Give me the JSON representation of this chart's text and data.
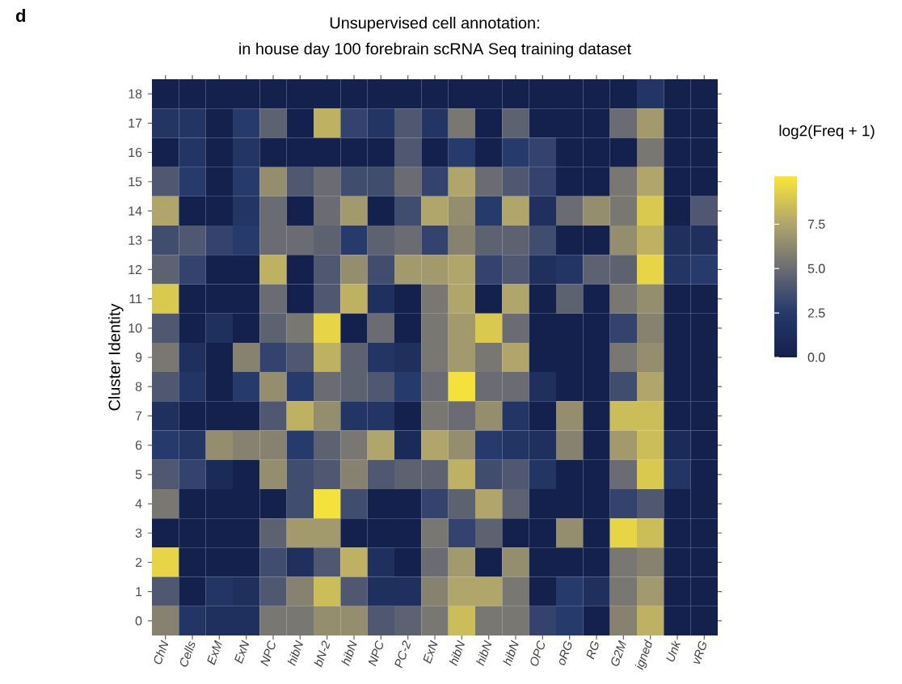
{
  "chart_data": {
    "type": "heatmap",
    "title": "Unsupervised cell annotation:",
    "subtitle": "in house day 100 forebrain scRNA Seq training dataset",
    "ylabel": "Cluster Identity",
    "clabel": "log2(Freq + 1)",
    "annotations": [
      "d"
    ],
    "categories": [
      "ChN",
      "Cells",
      "ExM",
      "ExN",
      "NPC",
      "hibN",
      "bN-2",
      "hibN",
      "NPC",
      "PC-2",
      "ExN",
      "hibN",
      "hibN",
      "hibN",
      "OPC",
      "oRG",
      "RG",
      "G2M",
      "igned",
      "Unk",
      "vRG"
    ],
    "y_categories": [
      "18",
      "17",
      "16",
      "15",
      "14",
      "13",
      "12",
      "11",
      "10",
      "9",
      "8",
      "7",
      "6",
      "5",
      "4",
      "3",
      "2",
      "1",
      "0"
    ],
    "cells": [
      [
        0,
        0,
        0,
        0,
        0,
        0,
        0,
        0,
        0,
        0,
        0,
        0,
        0,
        0,
        0,
        0,
        0,
        0,
        2,
        0,
        0
      ],
      [
        2,
        2,
        0,
        2.5,
        4.5,
        0,
        8,
        3,
        2,
        4,
        2,
        5.5,
        0,
        4.5,
        0,
        0,
        0,
        5,
        7,
        0,
        0
      ],
      [
        0,
        2,
        0,
        2,
        0,
        0,
        0,
        0,
        0,
        4,
        0,
        2.5,
        0,
        2.5,
        3,
        0,
        0,
        0,
        5.5,
        0,
        0
      ],
      [
        4,
        2.5,
        0,
        2.5,
        6.5,
        4,
        5,
        3.5,
        3.5,
        5,
        3,
        7.5,
        5,
        4,
        3,
        0,
        0,
        5.5,
        7.5,
        0,
        0
      ],
      [
        7.5,
        0,
        0,
        2,
        5,
        0,
        5,
        7,
        0,
        3.5,
        7.5,
        6.5,
        2.5,
        7.5,
        1.5,
        5,
        6.5,
        5.5,
        9,
        0,
        4
      ],
      [
        3.5,
        4,
        3,
        2.5,
        5,
        5,
        4.5,
        2.5,
        4.5,
        5,
        3,
        6,
        4.5,
        4.5,
        3.5,
        0,
        0,
        6.5,
        8,
        1.5,
        1.5
      ],
      [
        4.5,
        3,
        0,
        0,
        8,
        0,
        4,
        6.5,
        3.5,
        7,
        7,
        7.5,
        3,
        4,
        1.5,
        2,
        4.5,
        4.5,
        9.5,
        2,
        2.5
      ],
      [
        9,
        0,
        0,
        0,
        5,
        0,
        4,
        8,
        1.5,
        0,
        5.5,
        7.5,
        0,
        7.5,
        0,
        4.5,
        0,
        5.5,
        6.5,
        0,
        0
      ],
      [
        4,
        0,
        1.5,
        0,
        4.5,
        5.5,
        9.5,
        0,
        5,
        0,
        5.5,
        7,
        9,
        5,
        0,
        0,
        0,
        3,
        6,
        0,
        0
      ],
      [
        5.5,
        1.5,
        0,
        6,
        3,
        4,
        8,
        4.5,
        2,
        1.5,
        5.5,
        7,
        5.5,
        7.5,
        0,
        0,
        0,
        5.5,
        6.5,
        0,
        0
      ],
      [
        4,
        2,
        0,
        2.5,
        6.5,
        2.5,
        5,
        4.5,
        4,
        2.5,
        5,
        10,
        5,
        5,
        1.5,
        0,
        0,
        3.5,
        7.5,
        0,
        0
      ],
      [
        1.5,
        0,
        0,
        0,
        4,
        8,
        6.5,
        2,
        2,
        0,
        5.5,
        5,
        6.5,
        2,
        0,
        6.5,
        0,
        8.5,
        8.5,
        0,
        0
      ],
      [
        2.5,
        2,
        6.5,
        6,
        6,
        2.5,
        4.5,
        5.5,
        7.5,
        1,
        7.5,
        6.5,
        2.5,
        2,
        1.5,
        6,
        0,
        7,
        8.5,
        1,
        0
      ],
      [
        4,
        3,
        1,
        0,
        6.5,
        3.5,
        4,
        6,
        4,
        4.5,
        4.5,
        8,
        3.5,
        4,
        2,
        0,
        0,
        5,
        9,
        2,
        0
      ],
      [
        5.5,
        0,
        0,
        0,
        0,
        3.5,
        10,
        3.5,
        0,
        0,
        3,
        4.5,
        7.5,
        4.5,
        0,
        0,
        0,
        3,
        4,
        0,
        0
      ],
      [
        0,
        0,
        0,
        0,
        4.5,
        7,
        7,
        0,
        0,
        0,
        5.5,
        3,
        4.5,
        0,
        0,
        6.5,
        0,
        9.5,
        8.5,
        0,
        0
      ],
      [
        9.5,
        0,
        0,
        0,
        3.5,
        1.5,
        4,
        8,
        1.5,
        0,
        5,
        7,
        0,
        6.5,
        0,
        0,
        0,
        5.5,
        6,
        0,
        0
      ],
      [
        4,
        0,
        2,
        1.5,
        4,
        6,
        8.5,
        4,
        1.5,
        1.5,
        6,
        7.5,
        7.5,
        5.5,
        0,
        2.5,
        1.5,
        5.5,
        7,
        0,
        0
      ],
      [
        6,
        2,
        1.5,
        1.5,
        5.5,
        5.5,
        6.5,
        6.5,
        4,
        4.5,
        5.5,
        8.5,
        5.5,
        5.5,
        3,
        2.5,
        0,
        6,
        8,
        0,
        0
      ]
    ],
    "clim": [
      0,
      10.2
    ],
    "cticks": [
      {
        "value": 0,
        "label": "0.0"
      },
      {
        "value": 2.5,
        "label": "2.5"
      },
      {
        "value": 5,
        "label": "5.0"
      },
      {
        "value": 7.5,
        "label": "7.5"
      }
    ]
  }
}
